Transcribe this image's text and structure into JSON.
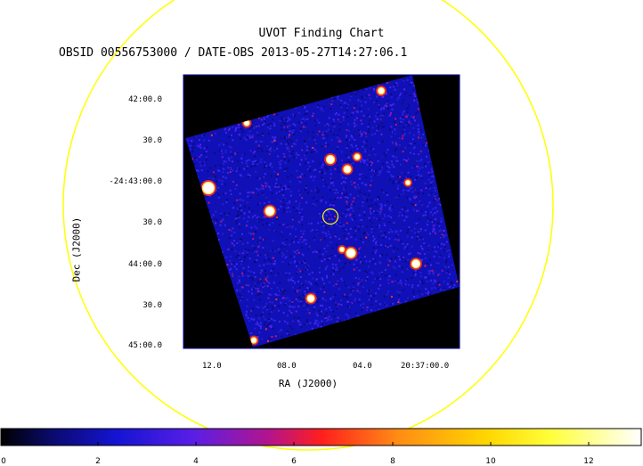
{
  "title": "UVOT Finding Chart",
  "subtitle": "OBSID 00556753000 / DATE-OBS 2013-05-27T14:27:06.1",
  "axes": {
    "x_label": "RA (J2000)",
    "y_label": "Dec (J2000)",
    "x_ticks": [
      "12.0",
      "08.0",
      "04.0",
      "20:37:00.0"
    ],
    "y_ticks": [
      "42:00.0",
      "30.0",
      "-24:43:00.0",
      "30.0",
      "44:00.0",
      "30.0",
      "45:00.0"
    ]
  },
  "colorbar": {
    "ticks": [
      "0",
      "2",
      "4",
      "6",
      "8",
      "10",
      "12"
    ],
    "range": [
      0,
      13
    ],
    "colors": [
      "#000000",
      "#0a0a6e",
      "#1414d2",
      "#5a1ee6",
      "#b4148c",
      "#ff1e1e",
      "#ff8c14",
      "#ffd700",
      "#ffff3c",
      "#ffffff"
    ]
  },
  "overlay": {
    "circle_color": "#ffff00",
    "frame_color": "#0000aa"
  }
}
